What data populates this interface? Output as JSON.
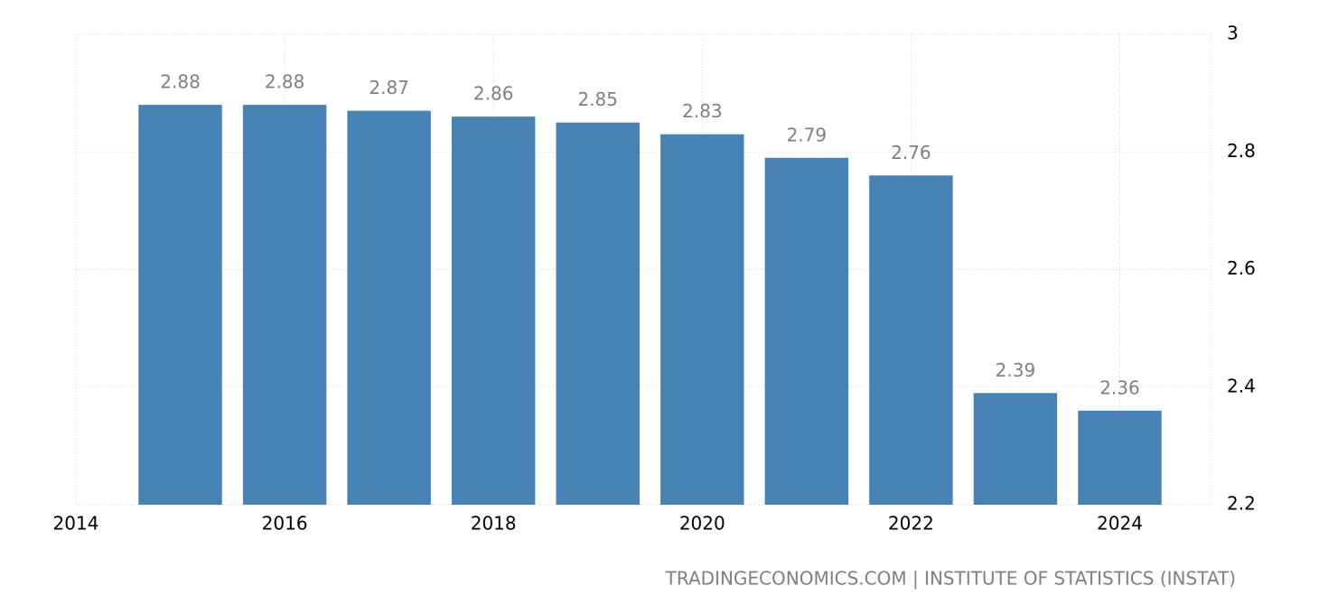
{
  "chart_data": {
    "type": "bar",
    "x": [
      2015,
      2016,
      2017,
      2018,
      2019,
      2020,
      2021,
      2022,
      2023,
      2024
    ],
    "values": [
      2.88,
      2.88,
      2.87,
      2.86,
      2.85,
      2.83,
      2.79,
      2.76,
      2.39,
      2.36
    ],
    "color": "#4682b4",
    "xlim": [
      2014,
      2024.87
    ],
    "xticks": [
      2014,
      2016,
      2018,
      2020,
      2022,
      2024
    ],
    "ylim": [
      2.2,
      3
    ],
    "yticks": [
      2.2,
      2.4,
      2.6,
      2.8,
      3
    ],
    "grid": true,
    "source": "TRADINGECONOMICS.COM | INSTITUTE OF STATISTICS (INSTAT)"
  }
}
